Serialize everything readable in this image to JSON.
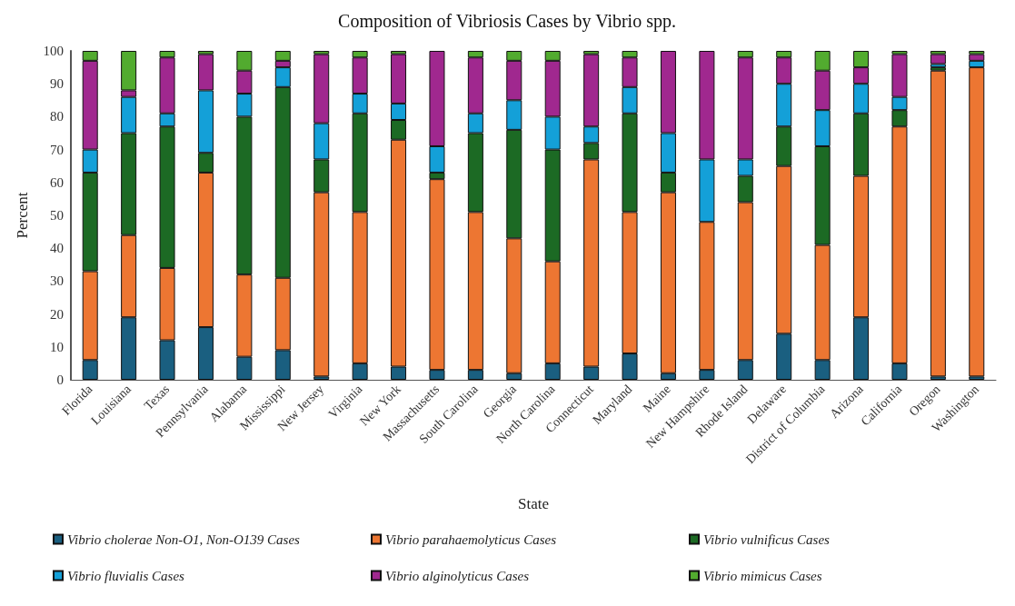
{
  "chart_data": {
    "type": "bar",
    "stacked": true,
    "title": "Composition of Vibriosis Cases by Vibrio spp.",
    "xlabel": "State",
    "ylabel": "Percent",
    "categories": [
      "Florida",
      "Louisiana",
      "Texas",
      "Pennsylvania",
      "Alabama",
      "Mississippi",
      "New Jersey",
      "Virginia",
      "New York",
      "Massachusetts",
      "South Carolina",
      "Georgia",
      "North Carolina",
      "Connecticut",
      "Maryland",
      "Maine",
      "New Hampshire",
      "Rhode Island",
      "Delaware",
      "District of Columbia",
      "Arizona",
      "California",
      "Oregon",
      "Washington"
    ],
    "series": [
      {
        "name": "Vibrio cholerae Non-O1, Non-O139 Cases",
        "color": "#1a5f80",
        "values": [
          6,
          19,
          12,
          16,
          7,
          9,
          1,
          5,
          4,
          3,
          3,
          2,
          5,
          4,
          8,
          2,
          3,
          6,
          14,
          6,
          19,
          5,
          1,
          1
        ]
      },
      {
        "name": "Vibrio parahaemolyticus Cases",
        "color": "#ed7632",
        "values": [
          27,
          25,
          22,
          47,
          25,
          22,
          56,
          46,
          69,
          58,
          48,
          41,
          31,
          63,
          43,
          55,
          45,
          48,
          51,
          35,
          43,
          72,
          93,
          94
        ]
      },
      {
        "name": "Vibrio vulnificus Cases",
        "color": "#1c6a24",
        "values": [
          30,
          31,
          43,
          6,
          48,
          58,
          10,
          30,
          6,
          2,
          24,
          33,
          34,
          5,
          30,
          6,
          0,
          8,
          12,
          30,
          19,
          5,
          1,
          0
        ]
      },
      {
        "name": "Vibrio fluvialis Cases",
        "color": "#14a0d8",
        "values": [
          7,
          11,
          4,
          19,
          7,
          6,
          11,
          6,
          5,
          8,
          6,
          9,
          10,
          5,
          8,
          12,
          19,
          5,
          13,
          11,
          9,
          4,
          1,
          2
        ]
      },
      {
        "name": "Vibrio alginolyticus Cases",
        "color": "#a0288f",
        "values": [
          27,
          2,
          17,
          11,
          7,
          2,
          21,
          11,
          15,
          29,
          17,
          12,
          17,
          22,
          9,
          25,
          33,
          31,
          8,
          12,
          5,
          13,
          3,
          2
        ]
      },
      {
        "name": "Vibrio mimicus Cases",
        "color": "#52ab2f",
        "values": [
          3,
          12,
          2,
          1,
          6,
          3,
          1,
          2,
          1,
          0,
          2,
          3,
          3,
          1,
          2,
          0,
          0,
          2,
          2,
          6,
          5,
          1,
          1,
          1
        ]
      }
    ],
    "ylim": [
      0,
      100
    ],
    "yticks": [
      0,
      10,
      20,
      30,
      40,
      50,
      60,
      70,
      80,
      90,
      100
    ],
    "grid": false,
    "legend": "bottom"
  }
}
